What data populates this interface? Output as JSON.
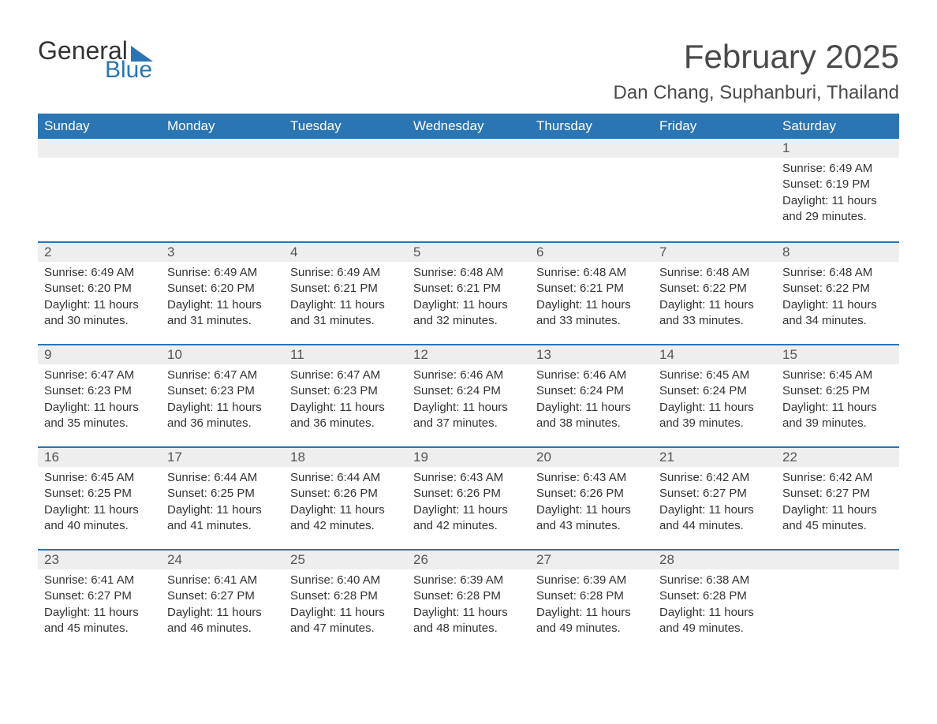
{
  "logo": {
    "line1": "General",
    "line2": "Blue",
    "accent_color": "#2a75b3",
    "text_color": "#333333"
  },
  "title": "February 2025",
  "location": "Dan Chang, Suphanburi, Thailand",
  "colors": {
    "header_bg": "#2a75b3",
    "header_text": "#ffffff",
    "daynum_bg": "#eeeeee",
    "row_border": "#2a75b3",
    "body_text": "#333333",
    "background": "#ffffff"
  },
  "typography": {
    "title_fontsize": 42,
    "location_fontsize": 24,
    "header_fontsize": 17,
    "daynum_fontsize": 17,
    "body_fontsize": 15
  },
  "columns": [
    "Sunday",
    "Monday",
    "Tuesday",
    "Wednesday",
    "Thursday",
    "Friday",
    "Saturday"
  ],
  "weeks": [
    [
      null,
      null,
      null,
      null,
      null,
      null,
      {
        "num": "1",
        "sunrise": "6:49 AM",
        "sunset": "6:19 PM",
        "daylight": "11 hours and 29 minutes."
      }
    ],
    [
      {
        "num": "2",
        "sunrise": "6:49 AM",
        "sunset": "6:20 PM",
        "daylight": "11 hours and 30 minutes."
      },
      {
        "num": "3",
        "sunrise": "6:49 AM",
        "sunset": "6:20 PM",
        "daylight": "11 hours and 31 minutes."
      },
      {
        "num": "4",
        "sunrise": "6:49 AM",
        "sunset": "6:21 PM",
        "daylight": "11 hours and 31 minutes."
      },
      {
        "num": "5",
        "sunrise": "6:48 AM",
        "sunset": "6:21 PM",
        "daylight": "11 hours and 32 minutes."
      },
      {
        "num": "6",
        "sunrise": "6:48 AM",
        "sunset": "6:21 PM",
        "daylight": "11 hours and 33 minutes."
      },
      {
        "num": "7",
        "sunrise": "6:48 AM",
        "sunset": "6:22 PM",
        "daylight": "11 hours and 33 minutes."
      },
      {
        "num": "8",
        "sunrise": "6:48 AM",
        "sunset": "6:22 PM",
        "daylight": "11 hours and 34 minutes."
      }
    ],
    [
      {
        "num": "9",
        "sunrise": "6:47 AM",
        "sunset": "6:23 PM",
        "daylight": "11 hours and 35 minutes."
      },
      {
        "num": "10",
        "sunrise": "6:47 AM",
        "sunset": "6:23 PM",
        "daylight": "11 hours and 36 minutes."
      },
      {
        "num": "11",
        "sunrise": "6:47 AM",
        "sunset": "6:23 PM",
        "daylight": "11 hours and 36 minutes."
      },
      {
        "num": "12",
        "sunrise": "6:46 AM",
        "sunset": "6:24 PM",
        "daylight": "11 hours and 37 minutes."
      },
      {
        "num": "13",
        "sunrise": "6:46 AM",
        "sunset": "6:24 PM",
        "daylight": "11 hours and 38 minutes."
      },
      {
        "num": "14",
        "sunrise": "6:45 AM",
        "sunset": "6:24 PM",
        "daylight": "11 hours and 39 minutes."
      },
      {
        "num": "15",
        "sunrise": "6:45 AM",
        "sunset": "6:25 PM",
        "daylight": "11 hours and 39 minutes."
      }
    ],
    [
      {
        "num": "16",
        "sunrise": "6:45 AM",
        "sunset": "6:25 PM",
        "daylight": "11 hours and 40 minutes."
      },
      {
        "num": "17",
        "sunrise": "6:44 AM",
        "sunset": "6:25 PM",
        "daylight": "11 hours and 41 minutes."
      },
      {
        "num": "18",
        "sunrise": "6:44 AM",
        "sunset": "6:26 PM",
        "daylight": "11 hours and 42 minutes."
      },
      {
        "num": "19",
        "sunrise": "6:43 AM",
        "sunset": "6:26 PM",
        "daylight": "11 hours and 42 minutes."
      },
      {
        "num": "20",
        "sunrise": "6:43 AM",
        "sunset": "6:26 PM",
        "daylight": "11 hours and 43 minutes."
      },
      {
        "num": "21",
        "sunrise": "6:42 AM",
        "sunset": "6:27 PM",
        "daylight": "11 hours and 44 minutes."
      },
      {
        "num": "22",
        "sunrise": "6:42 AM",
        "sunset": "6:27 PM",
        "daylight": "11 hours and 45 minutes."
      }
    ],
    [
      {
        "num": "23",
        "sunrise": "6:41 AM",
        "sunset": "6:27 PM",
        "daylight": "11 hours and 45 minutes."
      },
      {
        "num": "24",
        "sunrise": "6:41 AM",
        "sunset": "6:27 PM",
        "daylight": "11 hours and 46 minutes."
      },
      {
        "num": "25",
        "sunrise": "6:40 AM",
        "sunset": "6:28 PM",
        "daylight": "11 hours and 47 minutes."
      },
      {
        "num": "26",
        "sunrise": "6:39 AM",
        "sunset": "6:28 PM",
        "daylight": "11 hours and 48 minutes."
      },
      {
        "num": "27",
        "sunrise": "6:39 AM",
        "sunset": "6:28 PM",
        "daylight": "11 hours and 49 minutes."
      },
      {
        "num": "28",
        "sunrise": "6:38 AM",
        "sunset": "6:28 PM",
        "daylight": "11 hours and 49 minutes."
      },
      null
    ]
  ],
  "labels": {
    "sunrise": "Sunrise: ",
    "sunset": "Sunset: ",
    "daylight": "Daylight: "
  }
}
